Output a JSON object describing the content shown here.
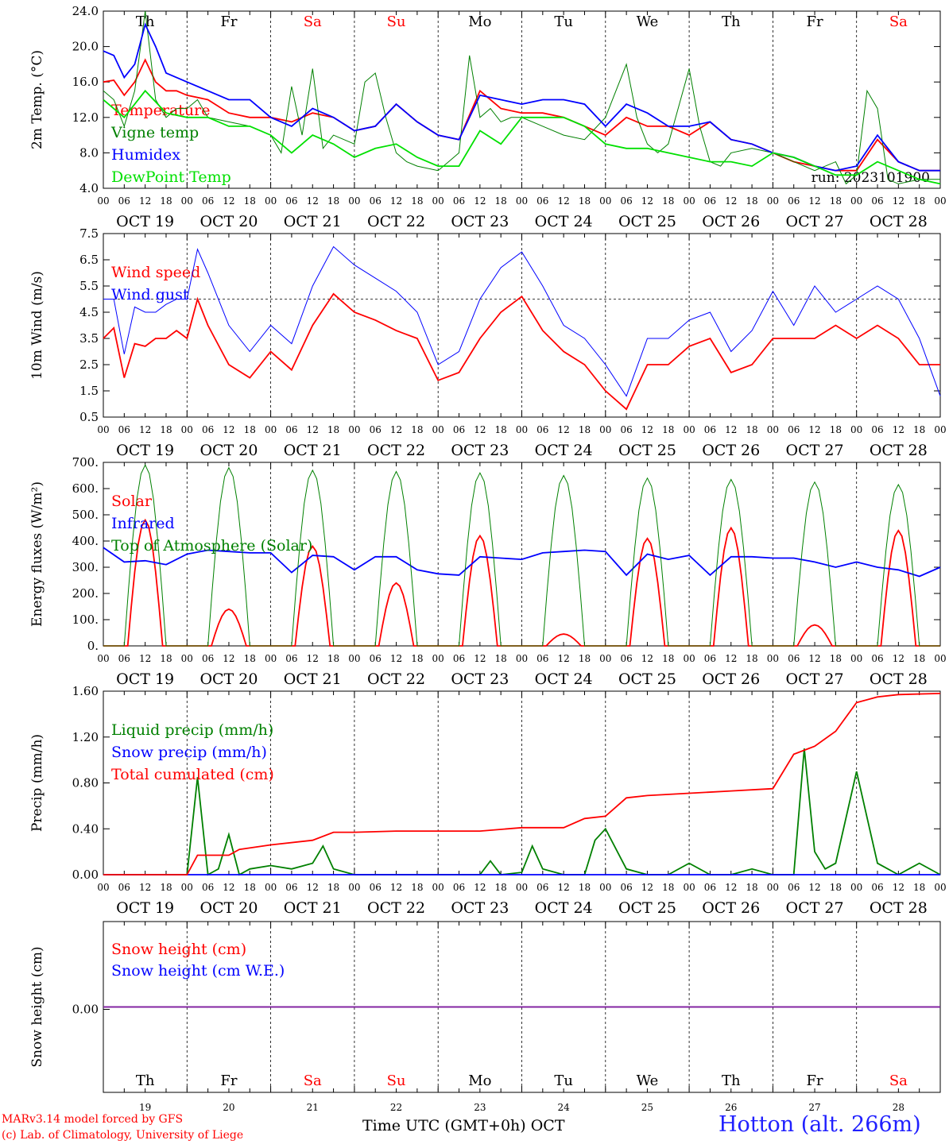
{
  "chart_data": [
    {
      "type": "line",
      "ylabel": "2m Temp. (°C)",
      "ylim": [
        4,
        24
      ],
      "yticks": [
        "24.0",
        "20.0",
        "16.0",
        "12.0",
        "8.0",
        "4.0"
      ],
      "x_unit": "hours since 00 UTC OCT 19",
      "annotation": "run: 2023101900",
      "series": [
        {
          "name": "Temperature",
          "color": "#ff0000",
          "x": [
            0,
            3,
            6,
            9,
            12,
            15,
            18,
            21,
            24,
            30,
            36,
            42,
            48,
            54,
            60,
            66,
            72,
            78,
            84,
            90,
            96,
            102,
            108,
            114,
            120,
            126,
            132,
            138,
            144,
            150,
            156,
            162,
            168,
            174,
            180,
            186,
            192,
            198,
            204,
            210,
            216,
            222,
            228,
            234,
            240
          ],
          "values": [
            16,
            16.2,
            14.5,
            16,
            18.5,
            16,
            15,
            15,
            14.5,
            14,
            12.5,
            12,
            12,
            11.5,
            12.5,
            12,
            10.5,
            11,
            13.5,
            11.5,
            10,
            9.5,
            15,
            13,
            12.5,
            12.5,
            12,
            11,
            10,
            12,
            11,
            11,
            10,
            11.5,
            9.5,
            9,
            8,
            7,
            6.5,
            6,
            6,
            9.5,
            7,
            6,
            6
          ]
        },
        {
          "name": "Vigne temp",
          "color": "#008000",
          "x": [
            0,
            3,
            6,
            9,
            12,
            15,
            18,
            21,
            24,
            27,
            30,
            36,
            42,
            48,
            51,
            54,
            57,
            60,
            63,
            66,
            72,
            75,
            78,
            81,
            84,
            87,
            90,
            96,
            99,
            102,
            105,
            108,
            111,
            114,
            117,
            120,
            126,
            132,
            138,
            144,
            150,
            153,
            156,
            159,
            162,
            168,
            171,
            174,
            177,
            180,
            186,
            192,
            198,
            204,
            210,
            213,
            216,
            219,
            222,
            225,
            228,
            234,
            240
          ],
          "values": [
            15,
            14,
            11,
            15,
            24,
            14,
            12,
            13,
            13,
            14,
            12,
            11.5,
            11,
            10,
            8,
            15.5,
            10,
            17.5,
            8.5,
            10,
            9,
            16,
            17,
            12,
            8,
            7,
            6.5,
            6,
            7,
            8,
            19,
            12,
            13,
            11.5,
            12,
            12,
            11,
            10,
            9.5,
            12,
            18,
            12,
            9,
            8,
            9,
            17.5,
            11,
            7,
            6.5,
            8,
            8.5,
            8,
            7,
            6,
            7,
            4.5,
            5.5,
            15,
            13,
            5,
            4.5,
            5,
            5
          ]
        },
        {
          "name": "Humidex",
          "color": "#0000ff",
          "x": [
            0,
            3,
            6,
            9,
            12,
            15,
            18,
            24,
            30,
            36,
            42,
            48,
            54,
            60,
            66,
            72,
            78,
            84,
            90,
            96,
            102,
            108,
            114,
            120,
            126,
            132,
            138,
            144,
            150,
            156,
            162,
            168,
            174,
            180,
            186,
            192,
            198,
            204,
            210,
            216,
            222,
            228,
            234,
            240
          ],
          "values": [
            19.5,
            19,
            16.5,
            18,
            22.5,
            20,
            17,
            16,
            15,
            14,
            14,
            12,
            11,
            13,
            12,
            10.5,
            11,
            13.5,
            11.5,
            10,
            9.5,
            14.5,
            14,
            13.5,
            14,
            14,
            13.5,
            11,
            13.5,
            12.5,
            11,
            11,
            11.5,
            9.5,
            9,
            8,
            7.5,
            6.5,
            6,
            6.5,
            10,
            7,
            6,
            6
          ]
        },
        {
          "name": "DewPoint Temp",
          "color": "#00e000",
          "x": [
            0,
            6,
            12,
            18,
            24,
            30,
            36,
            42,
            48,
            54,
            60,
            66,
            72,
            78,
            84,
            90,
            96,
            102,
            108,
            114,
            120,
            126,
            132,
            138,
            144,
            150,
            156,
            162,
            168,
            174,
            180,
            186,
            192,
            198,
            204,
            210,
            216,
            222,
            228,
            234,
            240
          ],
          "values": [
            14,
            12,
            15,
            12.5,
            12,
            12,
            11,
            11,
            10,
            8,
            10,
            9,
            7.5,
            8.5,
            9,
            7.5,
            6.5,
            6.5,
            10.5,
            9,
            12,
            12,
            12,
            11,
            9,
            8.5,
            8.5,
            8,
            7.5,
            7,
            7,
            6.5,
            8,
            7.5,
            6.5,
            5.5,
            5.5,
            7,
            6,
            5,
            4.5
          ]
        }
      ]
    },
    {
      "type": "line",
      "ylabel": "10m Wind (m/s)",
      "ylim": [
        0.5,
        7.5
      ],
      "yticks": [
        "7.5",
        "6.5",
        "5.5",
        "4.5",
        "3.5",
        "2.5",
        "1.5",
        "0.5"
      ],
      "reference_line": 5,
      "series": [
        {
          "name": "Wind speed",
          "color": "#ff0000",
          "x": [
            0,
            3,
            6,
            9,
            12,
            15,
            18,
            21,
            24,
            27,
            30,
            36,
            42,
            48,
            54,
            60,
            66,
            72,
            78,
            84,
            90,
            96,
            102,
            108,
            114,
            120,
            126,
            132,
            138,
            144,
            150,
            156,
            162,
            168,
            174,
            180,
            186,
            192,
            198,
            204,
            210,
            216,
            222,
            228,
            234,
            240
          ],
          "values": [
            3.5,
            3.9,
            2,
            3.3,
            3.2,
            3.5,
            3.5,
            3.8,
            3.5,
            5,
            4,
            2.5,
            2,
            3,
            2.3,
            4,
            5.2,
            4.5,
            4.2,
            3.8,
            3.5,
            1.9,
            2.2,
            3.5,
            4.5,
            5.1,
            3.8,
            3,
            2.5,
            1.5,
            0.8,
            2.5,
            2.5,
            3.2,
            3.5,
            2.2,
            2.5,
            3.5,
            3.5,
            3.5,
            4,
            3.5,
            4,
            3.5,
            2.5,
            2.5
          ]
        },
        {
          "name": "Wind gust",
          "color": "#0000ff",
          "x": [
            0,
            3,
            6,
            9,
            12,
            15,
            18,
            21,
            24,
            27,
            30,
            36,
            42,
            48,
            54,
            60,
            66,
            72,
            78,
            84,
            90,
            96,
            102,
            108,
            114,
            120,
            126,
            132,
            138,
            144,
            150,
            156,
            162,
            168,
            174,
            180,
            186,
            192,
            198,
            204,
            210,
            216,
            222,
            228,
            234,
            240
          ],
          "values": [
            5,
            5,
            2.9,
            4.7,
            4.5,
            4.5,
            4.8,
            5,
            5,
            6.9,
            6,
            4,
            3,
            4,
            3.3,
            5.5,
            7,
            6.3,
            5.8,
            5.3,
            4.5,
            2.5,
            3,
            5,
            6.2,
            6.8,
            5.5,
            4,
            3.5,
            2.5,
            1.3,
            3.5,
            3.5,
            4.2,
            4.5,
            3,
            3.8,
            5.3,
            4,
            5.5,
            4.5,
            5,
            5.5,
            5,
            3.5,
            1.3
          ]
        }
      ]
    },
    {
      "type": "line",
      "ylabel": "Energy fluxes (W/m²)",
      "ylim": [
        0,
        700
      ],
      "yticks": [
        "700.",
        "600.",
        "500.",
        "400.",
        "300.",
        "200.",
        "100.",
        "0."
      ],
      "series": [
        {
          "name": "Solar",
          "color": "#ff0000",
          "peaks": [
            480,
            140,
            380,
            240,
            420,
            45,
            410,
            450,
            80,
            440
          ]
        },
        {
          "name": "Infrared",
          "color": "#0000ff",
          "x": [
            0,
            6,
            12,
            18,
            24,
            30,
            36,
            42,
            48,
            54,
            60,
            66,
            72,
            78,
            84,
            90,
            96,
            102,
            108,
            114,
            120,
            126,
            132,
            138,
            144,
            150,
            156,
            162,
            168,
            174,
            180,
            186,
            192,
            198,
            204,
            210,
            216,
            222,
            228,
            234,
            240
          ],
          "values": [
            375,
            320,
            325,
            310,
            350,
            365,
            360,
            355,
            355,
            280,
            345,
            340,
            290,
            340,
            340,
            290,
            275,
            270,
            340,
            335,
            330,
            355,
            360,
            365,
            360,
            270,
            350,
            330,
            345,
            270,
            340,
            340,
            335,
            335,
            320,
            300,
            320,
            300,
            290,
            265,
            300
          ]
        },
        {
          "name": "Top of Atmosphere (Solar)",
          "color": "#008000",
          "peaks": [
            690,
            680,
            670,
            665,
            660,
            650,
            640,
            635,
            625,
            615
          ]
        }
      ]
    },
    {
      "type": "line",
      "ylabel": "Precip (mm/h)",
      "ylim": [
        0,
        1.6
      ],
      "yticks": [
        "1.60",
        "1.20",
        "0.80",
        "0.40",
        "0.00"
      ],
      "series": [
        {
          "name": "Liquid precip (mm/h)",
          "color": "#008000",
          "x": [
            0,
            24,
            27,
            30,
            33,
            36,
            39,
            42,
            48,
            54,
            60,
            63,
            66,
            72,
            90,
            96,
            108,
            111,
            114,
            120,
            123,
            126,
            132,
            138,
            141,
            144,
            150,
            156,
            162,
            168,
            174,
            180,
            186,
            192,
            198,
            201,
            204,
            207,
            210,
            216,
            222,
            228,
            234,
            240
          ],
          "values": [
            0,
            0,
            0.85,
            0,
            0.05,
            0.35,
            0,
            0.05,
            0.08,
            0.05,
            0.1,
            0.25,
            0.05,
            0,
            0,
            0,
            0,
            0.12,
            0,
            0.02,
            0.25,
            0.05,
            0,
            0,
            0.3,
            0.4,
            0.05,
            0,
            0,
            0.1,
            0,
            0,
            0.05,
            0,
            0,
            1.1,
            0.2,
            0.05,
            0.1,
            0.9,
            0.1,
            0,
            0.1,
            0
          ]
        },
        {
          "name": "Snow precip (mm/h)",
          "color": "#0000ff",
          "x": [
            0,
            240
          ],
          "values": [
            0,
            0
          ]
        },
        {
          "name": "Total cumulated (cm)",
          "color": "#ff0000",
          "x": [
            0,
            24,
            27,
            36,
            39,
            48,
            60,
            66,
            72,
            84,
            96,
            108,
            120,
            126,
            132,
            138,
            144,
            150,
            156,
            168,
            180,
            192,
            198,
            204,
            210,
            216,
            222,
            228,
            240
          ],
          "values": [
            0,
            0,
            0.17,
            0.17,
            0.22,
            0.26,
            0.3,
            0.37,
            0.37,
            0.38,
            0.38,
            0.38,
            0.41,
            0.41,
            0.41,
            0.49,
            0.51,
            0.67,
            0.69,
            0.71,
            0.73,
            0.75,
            1.05,
            1.12,
            1.25,
            1.5,
            1.55,
            1.57,
            1.58
          ]
        }
      ]
    },
    {
      "type": "line",
      "ylabel": "Snow height (cm)",
      "yticks": [
        "0.00"
      ],
      "series": [
        {
          "name": "Snow height (cm)",
          "color": "#ff0000",
          "x": [
            0,
            240
          ],
          "values": [
            0,
            0
          ]
        },
        {
          "name": "Snow height (cm W.E.)",
          "color": "#0000ff",
          "x": [
            0,
            240
          ],
          "values": [
            0,
            0
          ]
        }
      ]
    }
  ],
  "x_axis": {
    "hour_ticks": [
      "00",
      "06",
      "12",
      "18"
    ],
    "end_tick": "00",
    "dates": [
      "OCT 19",
      "OCT 20",
      "OCT 21",
      "OCT 22",
      "OCT 23",
      "OCT 24",
      "OCT 25",
      "OCT 26",
      "OCT 27",
      "OCT 28"
    ],
    "weekdays": [
      "Th",
      "Fr",
      "Sa",
      "Su",
      "Mo",
      "Tu",
      "We",
      "Th",
      "Fr",
      "Sa"
    ],
    "weekend_color": "#ff0000",
    "weekday_color": "#000000",
    "day_numbers": [
      "19",
      "20",
      "21",
      "22",
      "23",
      "24",
      "25",
      "26",
      "27",
      "28"
    ],
    "bottom_label": "Time UTC (GMT+0h) OCT"
  },
  "footer": {
    "credit_line1": "MARv3.14 model forced by GFS",
    "credit_line2": "(c) Lab. of Climatology, University of Liege",
    "station": "Hotton (alt. 266m)"
  }
}
